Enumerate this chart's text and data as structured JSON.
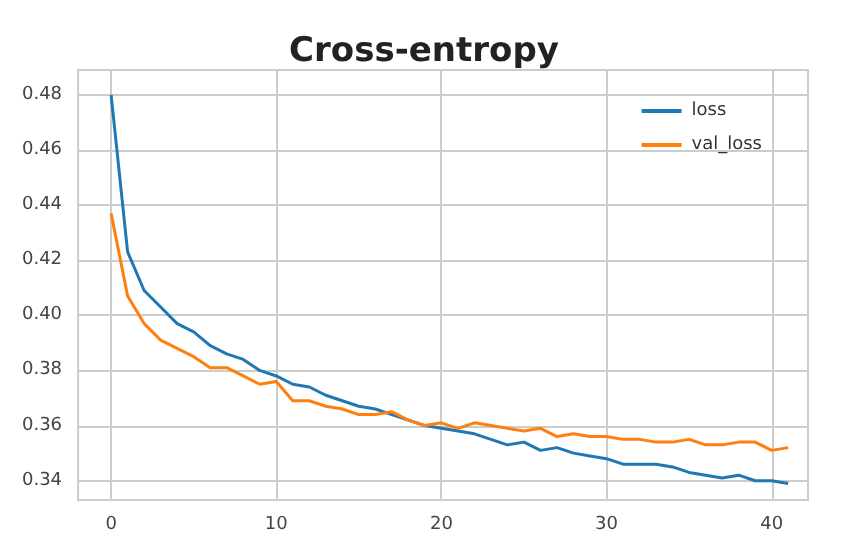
{
  "chart_data": {
    "type": "line",
    "title": "Cross-entropy",
    "x": [
      0,
      1,
      2,
      3,
      4,
      5,
      6,
      7,
      8,
      9,
      10,
      11,
      12,
      13,
      14,
      15,
      16,
      17,
      18,
      19,
      20,
      21,
      22,
      23,
      24,
      25,
      26,
      27,
      28,
      29,
      30,
      31,
      32,
      33,
      34,
      35,
      36,
      37,
      38,
      39,
      40,
      41
    ],
    "series": [
      {
        "name": "loss",
        "color": "#1f77b4",
        "values": [
          0.48,
          0.423,
          0.409,
          0.403,
          0.397,
          0.394,
          0.389,
          0.386,
          0.384,
          0.38,
          0.378,
          0.375,
          0.374,
          0.371,
          0.369,
          0.367,
          0.366,
          0.364,
          0.362,
          0.36,
          0.359,
          0.358,
          0.357,
          0.355,
          0.353,
          0.354,
          0.351,
          0.352,
          0.35,
          0.349,
          0.348,
          0.346,
          0.346,
          0.346,
          0.345,
          0.343,
          0.342,
          0.341,
          0.342,
          0.34,
          0.34,
          0.339
        ]
      },
      {
        "name": "val_loss",
        "color": "#ff7f0e",
        "values": [
          0.437,
          0.407,
          0.397,
          0.391,
          0.388,
          0.385,
          0.381,
          0.381,
          0.378,
          0.375,
          0.376,
          0.369,
          0.369,
          0.367,
          0.366,
          0.364,
          0.364,
          0.365,
          0.362,
          0.36,
          0.361,
          0.359,
          0.361,
          0.36,
          0.359,
          0.358,
          0.359,
          0.356,
          0.357,
          0.356,
          0.356,
          0.355,
          0.355,
          0.354,
          0.354,
          0.355,
          0.353,
          0.353,
          0.354,
          0.354,
          0.351,
          0.352
        ]
      }
    ],
    "xlim": [
      -2,
      42.2
    ],
    "xticks": [
      0,
      10,
      20,
      30,
      40
    ],
    "ylim": [
      0.333,
      0.489
    ],
    "yticks": [
      {
        "value": 0.34,
        "label": "0.34"
      },
      {
        "value": 0.36,
        "label": "0.36"
      },
      {
        "value": 0.38,
        "label": "0.38"
      },
      {
        "value": 0.4,
        "label": "0.40"
      },
      {
        "value": 0.42,
        "label": "0.42"
      },
      {
        "value": 0.44,
        "label": "0.44"
      },
      {
        "value": 0.46,
        "label": "0.46"
      },
      {
        "value": 0.48,
        "label": "0.48"
      }
    ],
    "grid": true,
    "legend": "top right",
    "marker": "none",
    "line_style": "solid"
  }
}
